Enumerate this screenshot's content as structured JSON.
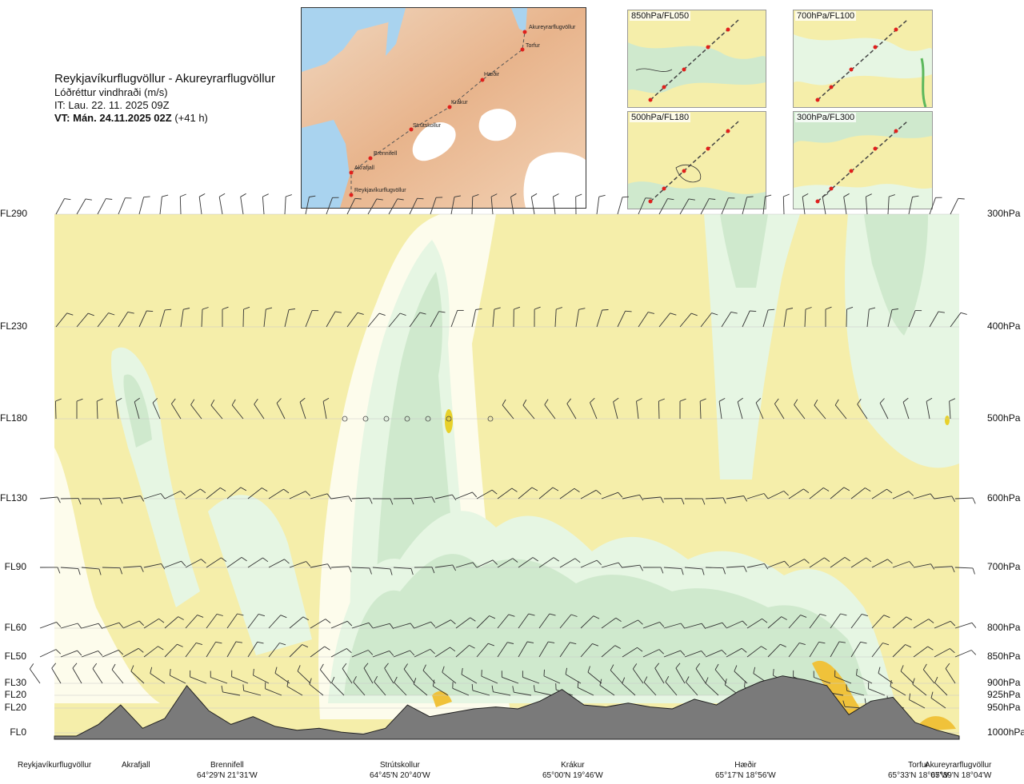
{
  "header": {
    "route": "Reykjavíkurflugvöllur - Akureyrarflugvöllur",
    "parameter": "Lóðréttur vindhraði (m/s)",
    "issue_time": "IT: Lau. 22. 11. 2025 09Z",
    "valid_time": "VT: Mán. 24.11.2025 02Z",
    "lead_time": "(+41 h)"
  },
  "route_map": {
    "waypoints": [
      "Akureyrarflugvöllur",
      "Torfur",
      "Hæðir",
      "Krákur",
      "Strútskollur",
      "Brennifell",
      "Akrafjall",
      "Reykjavíkurflugvöllur"
    ]
  },
  "level_maps": [
    {
      "label": "850hPa/FL050"
    },
    {
      "label": "700hPa/FL100"
    },
    {
      "label": "500hPa/FL180"
    },
    {
      "label": "300hPa/FL300"
    }
  ],
  "stations": [
    {
      "name": "Reykjavíkurflugvöllur",
      "coord": ""
    },
    {
      "name": "Akrafjall",
      "coord": ""
    },
    {
      "name": "Brennifell",
      "coord": "64°29'N 21°31'W"
    },
    {
      "name": "Strútskollur",
      "coord": "64°45'N 20°40'W"
    },
    {
      "name": "Krákur",
      "coord": "65°00'N 19°46'W"
    },
    {
      "name": "Hæðir",
      "coord": "65°17'N 18°56'W"
    },
    {
      "name": "Torfur",
      "coord": "65°33'N 18°07'W"
    },
    {
      "name": "Akureyrarflugvöllur",
      "coord": "65°39'N 18°04'W"
    }
  ],
  "colors": {
    "background": "#f5eeaa",
    "light_green": "#e6f6e3",
    "mid_green": "#cfe9cd",
    "pale": "#fdfcec",
    "orange": "#f0c23a",
    "terrain": "#7a7a7a"
  },
  "chart_data": {
    "type": "heatmap",
    "title": "Lóðréttur vindhraði (m/s)",
    "xlabel": "",
    "ylabel": "",
    "y_left_ticks": [
      "FL290",
      "FL230",
      "FL180",
      "FL130",
      "FL90",
      "FL60",
      "FL50",
      "FL30",
      "FL20",
      "FL20",
      "FL0"
    ],
    "y_right_ticks": [
      "300hPa",
      "400hPa",
      "500hPa",
      "600hPa",
      "700hPa",
      "800hPa",
      "850hPa",
      "900hPa",
      "925hPa",
      "950hPa",
      "1000hPa"
    ],
    "levels_hPa": [
      300,
      400,
      500,
      600,
      700,
      800,
      850,
      900,
      925,
      950,
      1000
    ],
    "x_stations": [
      "Reykjavíkurflugvöllur",
      "Akrafjall",
      "Brennifell",
      "Strútskollur",
      "Krákur",
      "Hæðir",
      "Torfur",
      "Akureyrarflugvöllur"
    ],
    "terrain_profile_ft": [
      0,
      0,
      600,
      1600,
      400,
      900,
      2600,
      1300,
      600,
      1000,
      500,
      300,
      400,
      200,
      100,
      400,
      1600,
      1000,
      1200,
      1400,
      1500,
      1400,
      1800,
      2400,
      1600,
      1500,
      1700,
      1500,
      1400,
      1900,
      1600,
      2300,
      2800,
      3100,
      2900,
      2600,
      1100,
      1800,
      2000,
      700,
      300,
      0
    ]
  }
}
